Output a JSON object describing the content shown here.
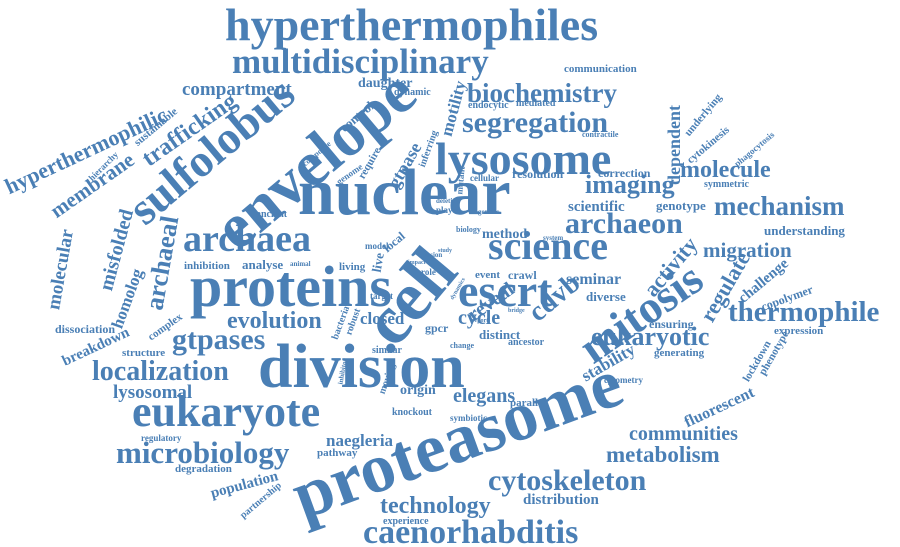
{
  "colors": {
    "word": "#4a7fb5",
    "background": "#ffffff"
  },
  "words": {
    "hyperthermophiles": "hyperthermophiles",
    "multidisciplinary": "multidisciplinary",
    "compartment": "compartment",
    "biochemistry": "biochemistry",
    "communication": "communication",
    "segregation": "segregation",
    "daughter": "daughter",
    "dynamic": "dynamic",
    "endocytic": "endocytic",
    "mediated": "mediated",
    "envelope": "envelope",
    "sulfolobus": "sulfolobus",
    "trafficking": "trafficking",
    "hyperthermophilic": "hyperthermophilic",
    "sustainable": "sustainable",
    "hierarchy": "hierarchy",
    "membrane": "membrane",
    "control": "control",
    "motility": "motility",
    "lysosome": "lysosome",
    "dependent": "dependent",
    "underlying": "underlying",
    "cytokinesis": "cytokinesis",
    "phagocytosis": "phagocytosis",
    "contractile": "contractile",
    "correction": "correction",
    "nuclear": "nuclear",
    "imaging": "imaging",
    "molecule": "molecule",
    "symmetric": "symmetric",
    "resolution": "resolution",
    "cellular": "cellular",
    "genome": "genome",
    "gtpase": "gtpase",
    "composite": "composite",
    "require": "require",
    "inferring": "inferring",
    "mutant": "mutant",
    "player": "player",
    "deletion": "deletion",
    "genetic": "genetic",
    "scientific": "scientific",
    "genotype": "genotype",
    "archaeon": "archaeon",
    "mechanism": "mechanism",
    "understanding": "understanding",
    "molecular": "molecular",
    "misfolded": "misfolded",
    "archaeal": "archaeal",
    "archaea": "archaea",
    "science": "science",
    "migration": "migration",
    "ancient": "ancient",
    "model": "model",
    "local": "local",
    "biology": "biology",
    "system": "system",
    "method": "method",
    "inhibition": "inhibition",
    "analyse": "analyse",
    "animal": "animal",
    "living": "living",
    "live": "live",
    "role": "role",
    "event": "event",
    "crawl": "crawl",
    "homolog": "homolog",
    "proteins": "proteins",
    "cell": "cell",
    "escrt": "escrt",
    "cdvb": "cdvb",
    "activity": "activity",
    "regulate": "regulate",
    "challenge": "challenge",
    "thermophile": "thermophile",
    "mitosis": "mitosis",
    "seminar": "seminar",
    "diverse": "diverse",
    "copolymer": "copolymer",
    "target": "target",
    "evolution": "evolution",
    "closed": "closed",
    "reveal": "reveal",
    "cycle": "cycle",
    "gpcr": "gpcr",
    "ensuring": "ensuring",
    "expression": "expression",
    "dissociation": "dissociation",
    "complex": "complex",
    "bacteria": "bacteria",
    "robust": "robust",
    "distinct": "distinct",
    "ancestor": "ancestor",
    "gtpases": "gtpases",
    "eukaryotic": "eukaryotic",
    "breakdown": "breakdown",
    "structure": "structure",
    "similar": "similar",
    "change": "change",
    "localization": "localization",
    "division": "division",
    "stability": "stability",
    "generating": "generating",
    "lockdown": "lockdown",
    "phenotype": "phenotype",
    "cytometry": "cytometry",
    "lysosomal": "lysosomal",
    "moving": "moving",
    "inhibitor": "inhibitor",
    "origin": "origin",
    "elegans": "elegans",
    "parallel": "parallel",
    "eukaryote": "eukaryote",
    "proteasome": "proteasome",
    "knockout": "knockout",
    "symbiotic": "symbiotic",
    "fluorescent": "fluorescent",
    "communities": "communities",
    "microbiology": "microbiology",
    "regulatory": "regulatory",
    "naegleria": "naegleria",
    "metabolism": "metabolism",
    "degradation": "degradation",
    "pathway": "pathway",
    "population": "population",
    "partnership": "partnership",
    "cytoskeleton": "cytoskeleton",
    "technology": "technology",
    "distribution": "distribution",
    "experience": "experience",
    "caenorhabditis": "caenorhabditis",
    "impact": "impact",
    "study": "study",
    "fusion": "fusion",
    "dynamics": "dynamics",
    "bridge": "bridge",
    "report": "report"
  }
}
